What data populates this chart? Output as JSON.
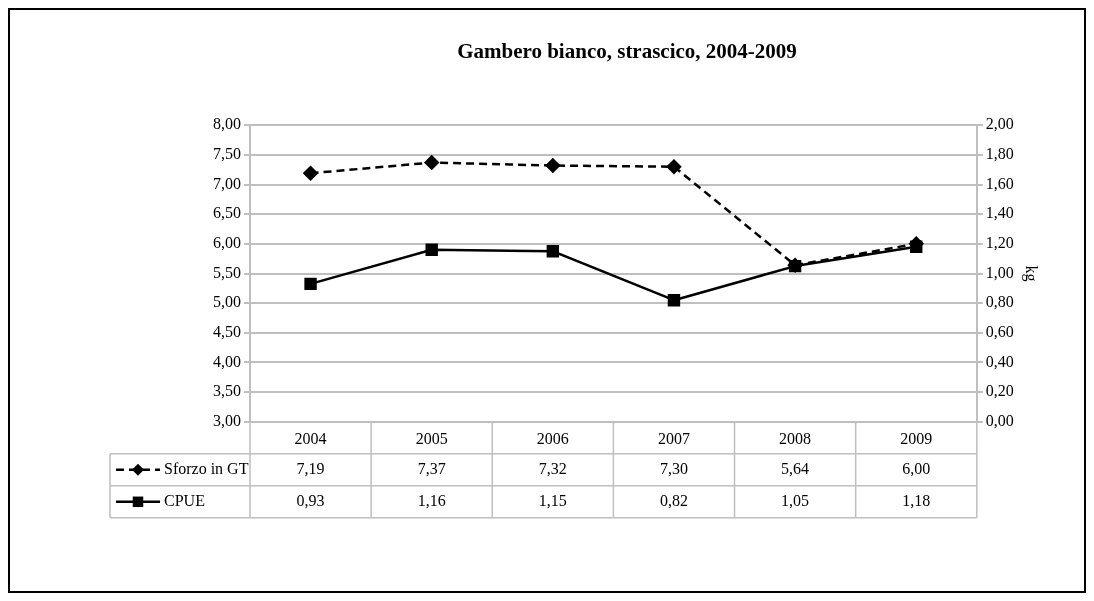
{
  "chart_data": {
    "type": "line",
    "title": "Gambero bianco, strascico, 2004-2009",
    "y2label": "kg",
    "categories": [
      "2004",
      "2005",
      "2006",
      "2007",
      "2008",
      "2009"
    ],
    "series": [
      {
        "name": "Sforzo in GT",
        "color": "#000000",
        "values": [
          7.19,
          7.37,
          7.32,
          7.3,
          5.64,
          6.0
        ],
        "value_labels": [
          "7,19",
          "7,37",
          "7,32",
          "7,30",
          "5,64",
          "6,00"
        ],
        "marker": "diamond",
        "line_style": "dashed"
      },
      {
        "name": "CPUE",
        "color": "#000000",
        "values": [
          0.93,
          1.16,
          1.15,
          0.82,
          1.05,
          1.18
        ],
        "value_labels": [
          "0,93",
          "1,16",
          "1,15",
          "0,82",
          "1,05",
          "1,18"
        ],
        "marker": "square",
        "line_style": "solid",
        "axis": "y2"
      }
    ],
    "ylim": [
      3,
      8
    ],
    "yticks": [
      {
        "value": 3,
        "label": "3,00"
      },
      {
        "value": 3.5,
        "label": "3,50"
      },
      {
        "value": 4,
        "label": "4,00"
      },
      {
        "value": 4.5,
        "label": "4,50"
      },
      {
        "value": 5,
        "label": "5,00"
      },
      {
        "value": 5.5,
        "label": "5,50"
      },
      {
        "value": 6,
        "label": "6,00"
      },
      {
        "value": 6.5,
        "label": "6,50"
      },
      {
        "value": 7,
        "label": "7,00"
      },
      {
        "value": 7.5,
        "label": "7,50"
      },
      {
        "value": 8,
        "label": "8,00"
      }
    ],
    "y2lim": [
      0,
      2
    ],
    "y2ticks": [
      {
        "value": 0,
        "label": "0,00"
      },
      {
        "value": 0.2,
        "label": "0,20"
      },
      {
        "value": 0.4,
        "label": "0,40"
      },
      {
        "value": 0.6,
        "label": "0,60"
      },
      {
        "value": 0.8,
        "label": "0,80"
      },
      {
        "value": 1,
        "label": "1,00"
      },
      {
        "value": 1.2,
        "label": "1,20"
      },
      {
        "value": 1.4,
        "label": "1,40"
      },
      {
        "value": 1.6,
        "label": "1,60"
      },
      {
        "value": 1.8,
        "label": "1,80"
      },
      {
        "value": 2,
        "label": "2,00"
      }
    ],
    "grid": "y",
    "legend": "bottom"
  }
}
